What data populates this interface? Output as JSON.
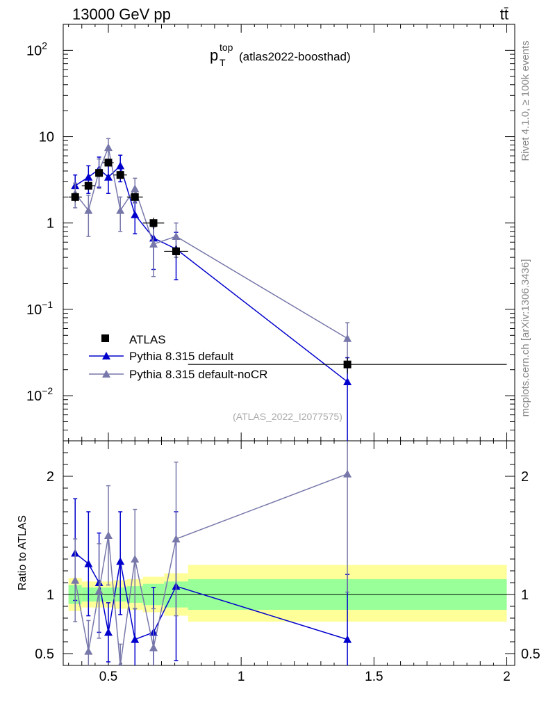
{
  "header": {
    "left": "13000 GeV pp",
    "right": "tt̄"
  },
  "side_labels": {
    "rivet": "Rivet 4.1.0, ≥ 100k events",
    "mcplots": "mcplots.cern.ch [arXiv:1306.3436]"
  },
  "chart_data": {
    "type": "scatter",
    "title": "p_T^top (atlas2022-boosthad)",
    "title_parts": {
      "base": "p",
      "sup": "top",
      "sub": "T",
      "rest": "(atlas2022-boosthad)"
    },
    "analysis_id": "(ATLAS_2022_I2077575)",
    "xlim": [
      0.33,
      2.03
    ],
    "main": {
      "yscale": "log",
      "ylim": [
        0.003,
        200
      ],
      "ytick_labels": [
        {
          "value": 100,
          "base": "10",
          "exp": "2"
        },
        {
          "value": 10,
          "base": "10",
          "exp": ""
        },
        {
          "value": 1,
          "base": "1",
          "exp": ""
        },
        {
          "value": 0.1,
          "base": "10",
          "exp": "−1"
        },
        {
          "value": 0.01,
          "base": "10",
          "exp": "−2"
        }
      ]
    },
    "ratio": {
      "ylabel": "Ratio to ATLAS",
      "ylim": [
        0.4,
        2.3
      ],
      "yticks": [
        0.5,
        1,
        2
      ],
      "ytick_labels": [
        "0.5",
        "1",
        "2"
      ]
    },
    "xticks": [
      0.5,
      1,
      1.5,
      2
    ],
    "xtick_labels": [
      "0.5",
      "1",
      "1.5",
      "2"
    ],
    "legend": {
      "position": "lower-left",
      "entries": [
        "ATLAS",
        "Pythia 8.315 default",
        "Pythia 8.315 default-noCR"
      ]
    },
    "data": {
      "name": "ATLAS",
      "color": "#000000",
      "points": [
        {
          "x": 0.375,
          "xerr": 0.025,
          "y": 2.0,
          "yerr": 0.25
        },
        {
          "x": 0.425,
          "xerr": 0.025,
          "y": 2.7,
          "yerr": 0.3
        },
        {
          "x": 0.465,
          "xerr": 0.015,
          "y": 3.8,
          "yerr": 0.4
        },
        {
          "x": 0.5,
          "xerr": 0.02,
          "y": 5.0,
          "yerr": 0.5
        },
        {
          "x": 0.545,
          "xerr": 0.025,
          "y": 3.6,
          "yerr": 0.4
        },
        {
          "x": 0.6,
          "xerr": 0.03,
          "y": 2.0,
          "yerr": 0.25
        },
        {
          "x": 0.67,
          "xerr": 0.04,
          "y": 1.0,
          "yerr": 0.15
        },
        {
          "x": 0.755,
          "xerr": 0.045,
          "y": 0.47,
          "yerr": 0.08
        },
        {
          "x": 1.4,
          "xerr": 0.6,
          "y": 0.023,
          "yerr": 0.005
        }
      ]
    },
    "series": [
      {
        "name": "Pythia 8.315 default",
        "color": "#0000cc",
        "x": [
          0.375,
          0.425,
          0.465,
          0.5,
          0.545,
          0.6,
          0.67,
          0.755,
          1.4
        ],
        "values": [
          2.7,
          3.4,
          4.2,
          3.4,
          4.6,
          1.25,
          0.67,
          0.5,
          0.0145
        ],
        "err_lo": [
          0.8,
          1.2,
          1.6,
          1.2,
          1.6,
          0.5,
          0.38,
          0.28,
          0.0145
        ],
        "err_hi": [
          0.9,
          1.2,
          1.6,
          1.2,
          1.5,
          0.5,
          0.38,
          0.28,
          0.013
        ],
        "ratio": [
          1.35,
          1.26,
          1.1,
          0.68,
          1.28,
          0.62,
          0.68,
          1.07,
          0.62
        ],
        "ratio_err_lo": [
          0.4,
          0.44,
          0.42,
          0.25,
          0.45,
          0.25,
          0.38,
          0.63,
          0.62
        ],
        "ratio_err_hi": [
          0.46,
          0.44,
          0.42,
          0.25,
          0.42,
          0.26,
          0.38,
          0.63,
          0.55
        ]
      },
      {
        "name": "Pythia 8.315 default-noCR",
        "color": "#7777aa",
        "x": [
          0.375,
          0.425,
          0.465,
          0.5,
          0.545,
          0.6,
          0.67,
          0.755,
          1.4
        ],
        "values": [
          2.2,
          1.4,
          4.0,
          7.5,
          1.4,
          2.5,
          0.57,
          0.7,
          0.046
        ],
        "err_lo": [
          0.7,
          0.7,
          1.5,
          2.0,
          0.6,
          0.8,
          0.33,
          0.3,
          0.024
        ],
        "err_hi": [
          0.7,
          0.7,
          1.5,
          2.0,
          0.6,
          0.8,
          0.33,
          0.3,
          0.024
        ],
        "ratio": [
          1.12,
          0.52,
          1.03,
          1.5,
          0.4,
          1.3,
          0.55,
          1.47,
          2.02
        ],
        "ratio_err_lo": [
          0.35,
          0.26,
          0.4,
          0.42,
          0.18,
          0.42,
          0.33,
          0.65,
          1.0
        ],
        "ratio_err_hi": [
          0.35,
          0.26,
          0.4,
          0.42,
          0.18,
          0.42,
          0.33,
          0.65,
          0.55
        ]
      }
    ],
    "ratio_bands": {
      "segments": [
        {
          "x0": 0.35,
          "x1": 0.4,
          "inner": [
            0.92,
            1.08
          ],
          "outer": [
            0.86,
            1.14
          ]
        },
        {
          "x0": 0.4,
          "x1": 0.45,
          "inner": [
            0.94,
            1.06
          ],
          "outer": [
            0.89,
            1.11
          ]
        },
        {
          "x0": 0.45,
          "x1": 0.48,
          "inner": [
            0.94,
            1.06
          ],
          "outer": [
            0.89,
            1.11
          ]
        },
        {
          "x0": 0.48,
          "x1": 0.52,
          "inner": [
            0.94,
            1.06
          ],
          "outer": [
            0.89,
            1.11
          ]
        },
        {
          "x0": 0.52,
          "x1": 0.57,
          "inner": [
            0.94,
            1.06
          ],
          "outer": [
            0.88,
            1.12
          ]
        },
        {
          "x0": 0.57,
          "x1": 0.63,
          "inner": [
            0.93,
            1.07
          ],
          "outer": [
            0.87,
            1.13
          ]
        },
        {
          "x0": 0.63,
          "x1": 0.71,
          "inner": [
            0.91,
            1.09
          ],
          "outer": [
            0.85,
            1.15
          ]
        },
        {
          "x0": 0.71,
          "x1": 0.8,
          "inner": [
            0.89,
            1.11
          ],
          "outer": [
            0.82,
            1.18
          ]
        },
        {
          "x0": 0.8,
          "x1": 2.0,
          "inner": [
            0.87,
            1.13
          ],
          "outer": [
            0.77,
            1.25
          ]
        }
      ],
      "inner_color": "#99ff99",
      "outer_color": "#ffff99"
    }
  }
}
